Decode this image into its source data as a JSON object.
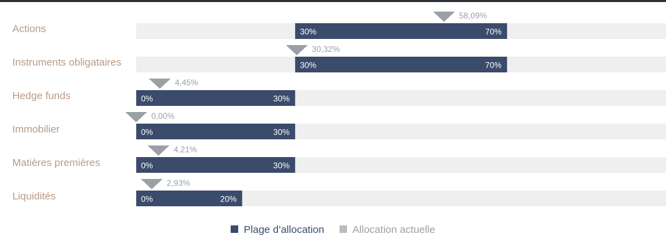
{
  "colors": {
    "range": "#3a4b6b",
    "track": "#efefef",
    "marker": "#9aa0a6",
    "category_label": "#b89a84",
    "current_label": "#9aa0a6",
    "range_label": "#ffffff"
  },
  "chart_data": {
    "type": "bar",
    "orientation": "horizontal",
    "xlim": [
      0,
      100
    ],
    "unit": "%",
    "categories": [
      "Actions",
      "Instruments obligataires",
      "Hedge funds",
      "Immobilier",
      "Matières premières",
      "Liquidités"
    ],
    "series": [
      {
        "name": "Plage d’allocation",
        "values": [
          [
            30,
            70
          ],
          [
            30,
            70
          ],
          [
            0,
            30
          ],
          [
            0,
            30
          ],
          [
            0,
            30
          ],
          [
            0,
            20
          ]
        ],
        "min_labels": [
          "30%",
          "30%",
          "0%",
          "0%",
          "0%",
          "0%"
        ],
        "max_labels": [
          "70%",
          "70%",
          "30%",
          "30%",
          "30%",
          "20%"
        ]
      },
      {
        "name": "Allocation actuelle",
        "values": [
          58.09,
          30.32,
          4.45,
          0.0,
          4.21,
          2.93
        ],
        "labels": [
          "58,09%",
          "30,32%",
          "4,45%",
          "0,00%",
          "4,21%",
          "2,93%"
        ]
      }
    ]
  },
  "legend": {
    "range_label": "Plage d’allocation",
    "current_label": "Allocation actuelle"
  }
}
